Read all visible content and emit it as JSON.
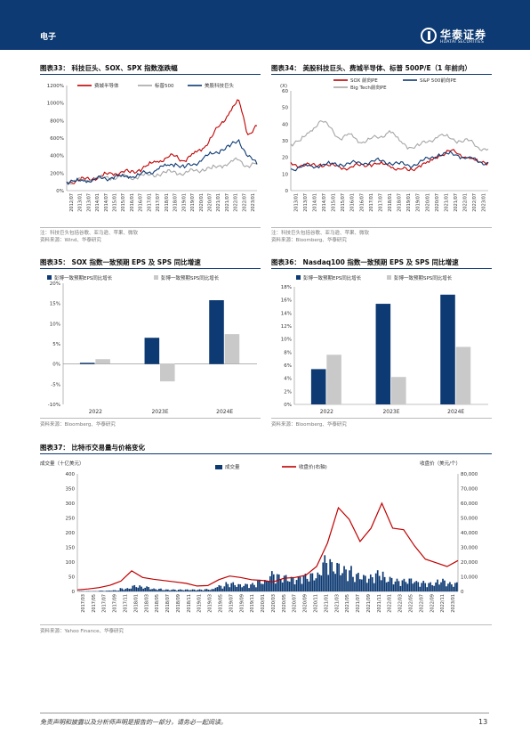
{
  "header": {
    "section": "电子",
    "logo_cn": "华泰证券",
    "logo_en": "HUATAI SECURITIES"
  },
  "fig33": {
    "title": "图表33：  科技巨头、SOX、SPX 指数涨跌幅",
    "note": "注：科技巨头包括谷歌、亚马逊、苹果、微软",
    "source": "资料来源：Wind、华泰研究",
    "chart_data": {
      "type": "line",
      "x_ticks": [
        "2012/07",
        "2013/01",
        "2013/07",
        "2014/01",
        "2014/07",
        "2015/01",
        "2015/07",
        "2016/01",
        "2016/07",
        "2017/01",
        "2017/07",
        "2018/01",
        "2018/07",
        "2019/01",
        "2019/07",
        "2020/01",
        "2020/07",
        "2021/01",
        "2021/07",
        "2022/01",
        "2022/07",
        "2023/01"
      ],
      "y_ticks": [
        "0%",
        "200%",
        "400%",
        "600%",
        "800%",
        "1000%",
        "1200%"
      ],
      "ylim": [
        0,
        1200
      ],
      "series": [
        {
          "name": "费城半导体",
          "color": "#c00000",
          "values": [
            100,
            112,
            126,
            145,
            170,
            195,
            215,
            205,
            240,
            290,
            335,
            375,
            395,
            340,
            420,
            480,
            610,
            760,
            900,
            1030,
            640,
            740
          ]
        },
        {
          "name": "标普500",
          "color": "#a6a6a6",
          "values": [
            100,
            108,
            122,
            135,
            145,
            152,
            158,
            148,
            165,
            176,
            190,
            205,
            215,
            195,
            225,
            245,
            250,
            285,
            320,
            350,
            280,
            305
          ]
        },
        {
          "name": "美股科技巨头",
          "color": "#0d3a73",
          "values": [
            100,
            105,
            115,
            125,
            140,
            150,
            165,
            160,
            180,
            205,
            245,
            285,
            310,
            260,
            305,
            360,
            420,
            465,
            500,
            580,
            390,
            300
          ]
        }
      ]
    }
  },
  "fig34": {
    "title": "图表34：  美股科技巨头、费城半导体、标普 500P/E（1 年前向）",
    "note": "注：科技巨头包括谷歌、亚马逊、苹果、微软",
    "source": "资料来源：Bloomberg、华泰研究",
    "chart_data": {
      "type": "line",
      "y_unit": "(X)",
      "x_ticks": [
        "2013/01",
        "2013/07",
        "2014/01",
        "2014/07",
        "2015/01",
        "2015/07",
        "2016/01",
        "2016/07",
        "2017/01",
        "2017/07",
        "2018/01",
        "2018/07",
        "2019/01",
        "2019/07",
        "2020/01",
        "2020/07",
        "2021/01",
        "2021/07",
        "2022/01",
        "2022/07",
        "2023/01"
      ],
      "y_ticks": [
        "0",
        "10",
        "20",
        "30",
        "40",
        "50",
        "60"
      ],
      "ylim": [
        0,
        60
      ],
      "series": [
        {
          "name": "SOX 前向PE",
          "color": "#c00000",
          "values": [
            17,
            15,
            15,
            16,
            15,
            14,
            14,
            15,
            16,
            16,
            15,
            13,
            12,
            15,
            17,
            21,
            24,
            22,
            20,
            17,
            17
          ]
        },
        {
          "name": "S&P 500前向PE",
          "color": "#0d3a73",
          "values": [
            13,
            14,
            15,
            15,
            16,
            16,
            16,
            17,
            17,
            18,
            17,
            16,
            15,
            17,
            19,
            22,
            22,
            21,
            20,
            17,
            17
          ]
        },
        {
          "name": "Big Tech前向PE",
          "color": "#a6a6a6",
          "values": [
            28,
            30,
            36,
            42,
            38,
            31,
            34,
            29,
            31,
            32,
            36,
            30,
            26,
            27,
            30,
            33,
            32,
            30,
            30,
            26,
            25
          ]
        }
      ]
    }
  },
  "fig35": {
    "title": "图表35：  SOX 指数一致预期 EPS 及 SPS 同比增速",
    "source": "资料来源：Bloomberg、华泰研究",
    "chart_data": {
      "type": "bar",
      "categories": [
        "2022",
        "2023E",
        "2024E"
      ],
      "y_ticks": [
        "-10%",
        "-5%",
        "0%",
        "5%",
        "10%",
        "15%",
        "20%"
      ],
      "ylim": [
        -10,
        20
      ],
      "series": [
        {
          "name": "彭博一致预期EPS同比增长",
          "color": "#0d3a73",
          "values": [
            0.3,
            6.5,
            15.8
          ]
        },
        {
          "name": "彭博一致预期SPS同比增长",
          "color": "#c9c9c9",
          "values": [
            1.2,
            -4.3,
            7.4
          ]
        }
      ]
    }
  },
  "fig36": {
    "title": "图表36：  Nasdaq100 指数一致预期 EPS 及 SPS 同比增速",
    "source": "资料来源：Bloomberg、华泰研究",
    "chart_data": {
      "type": "bar",
      "categories": [
        "2022",
        "2023E",
        "2024E"
      ],
      "y_ticks": [
        "0%",
        "2%",
        "4%",
        "6%",
        "8%",
        "10%",
        "12%",
        "14%",
        "16%",
        "18%"
      ],
      "ylim": [
        0,
        18
      ],
      "series": [
        {
          "name": "彭博一致预期EPS同比增长",
          "color": "#0d3a73",
          "values": [
            5.4,
            15.4,
            16.8
          ]
        },
        {
          "name": "彭博一致预期SPS同比增长",
          "color": "#c9c9c9",
          "values": [
            7.6,
            4.2,
            8.8
          ]
        }
      ]
    }
  },
  "fig37": {
    "title": "图表37：  比特币交易量与价格变化",
    "left_unit": "成交量（十亿美元）",
    "right_unit": "收盘价（美元/个）",
    "source": "资料来源：Yahoo Finance、华泰研究",
    "chart_data": {
      "type": "bar+line",
      "x_ticks": [
        "2017/03",
        "2017/05",
        "2017/07",
        "2017/09",
        "2017/11",
        "2018/01",
        "2018/03",
        "2018/05",
        "2018/07",
        "2018/09",
        "2018/11",
        "2019/01",
        "2019/03",
        "2019/05",
        "2019/07",
        "2019/09",
        "2019/11",
        "2020/01",
        "2020/03",
        "2020/05",
        "2020/07",
        "2020/09",
        "2020/11",
        "2021/01",
        "2021/03",
        "2021/05",
        "2021/07",
        "2021/09",
        "2021/11",
        "2022/01",
        "2022/03",
        "2022/05",
        "2022/07",
        "2022/09",
        "2022/11",
        "2023/01"
      ],
      "left_ticks": [
        "0",
        "50",
        "100",
        "150",
        "200",
        "250",
        "300",
        "350",
        "400"
      ],
      "right_ticks": [
        "0",
        "10,000",
        "20,000",
        "30,000",
        "40,000",
        "50,000",
        "60,000",
        "70,000",
        "80,000"
      ],
      "left_lim": [
        0,
        400
      ],
      "right_lim": [
        0,
        80000
      ],
      "series": [
        {
          "name": "成交量",
          "axis": "left",
          "color": "#0d3a73",
          "values": [
            1,
            1,
            2,
            3,
            8,
            15,
            12,
            7,
            5,
            5,
            5,
            5,
            6,
            15,
            22,
            18,
            20,
            28,
            48,
            40,
            35,
            42,
            45,
            85,
            70,
            60,
            45,
            40,
            50,
            35,
            30,
            32,
            25,
            22,
            30,
            22
          ]
        },
        {
          "name": "收盘价(右轴)",
          "axis": "right",
          "color": "#c00000",
          "values": [
            1100,
            1700,
            2600,
            4200,
            7000,
            14000,
            9500,
            8300,
            7400,
            6500,
            5500,
            3700,
            4000,
            8000,
            10500,
            9500,
            8000,
            7500,
            6500,
            9000,
            9500,
            11000,
            17000,
            33000,
            57000,
            49000,
            34000,
            43000,
            60000,
            43000,
            42000,
            31000,
            22000,
            19500,
            17000,
            21000
          ]
        }
      ]
    }
  },
  "footer": {
    "disclaimer": "免责声明和披露以及分析师声明是报告的一部分，请务必一起阅读。",
    "page": "13"
  }
}
